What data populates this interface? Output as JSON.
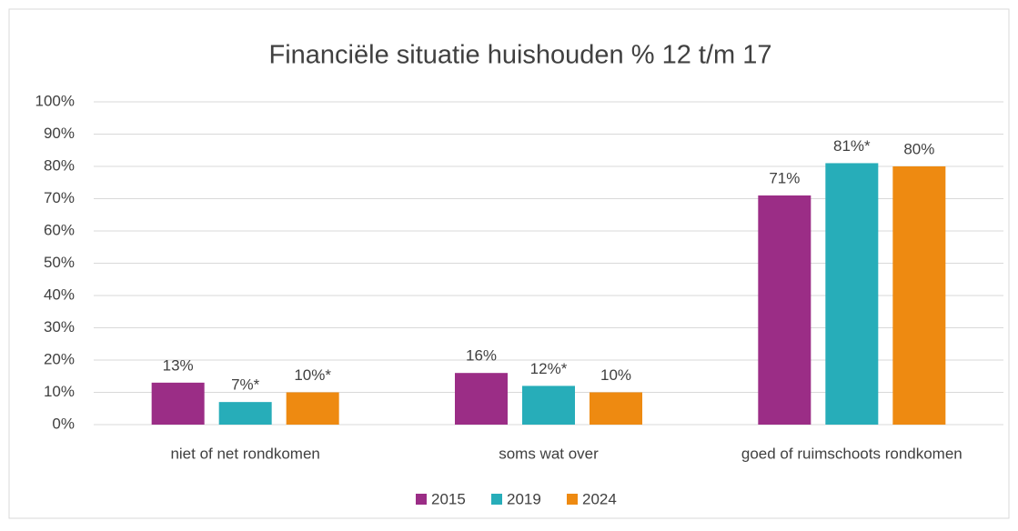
{
  "chart_data": {
    "type": "bar",
    "title": "Financiële situatie huishouden % 12 t/m 17",
    "categories": [
      "niet of net rondkomen",
      "soms wat over",
      "goed of ruimschoots rondkomen"
    ],
    "series": [
      {
        "name": "2015",
        "color": "#9b2d86",
        "values": [
          13,
          16,
          71
        ],
        "value_labels": [
          "13%",
          "16%",
          "71%"
        ]
      },
      {
        "name": "2019",
        "color": "#27adb9",
        "values": [
          7,
          12,
          81
        ],
        "value_labels": [
          "7%*",
          "12%*",
          "81%*"
        ]
      },
      {
        "name": "2024",
        "color": "#ee8a11",
        "values": [
          10,
          10,
          80
        ],
        "value_labels": [
          "10%*",
          "10%",
          "80%"
        ]
      }
    ],
    "ylim": [
      0,
      100
    ],
    "yticks": [
      {
        "value": 0,
        "label": "0%"
      },
      {
        "value": 10,
        "label": "10%"
      },
      {
        "value": 20,
        "label": "20%"
      },
      {
        "value": 30,
        "label": "30%"
      },
      {
        "value": 40,
        "label": "40%"
      },
      {
        "value": 50,
        "label": "50%"
      },
      {
        "value": 60,
        "label": "60%"
      },
      {
        "value": 70,
        "label": "70%"
      },
      {
        "value": 80,
        "label": "80%"
      },
      {
        "value": 90,
        "label": "90%"
      },
      {
        "value": 100,
        "label": "100%"
      }
    ],
    "grid": true,
    "legend": "bottom"
  }
}
